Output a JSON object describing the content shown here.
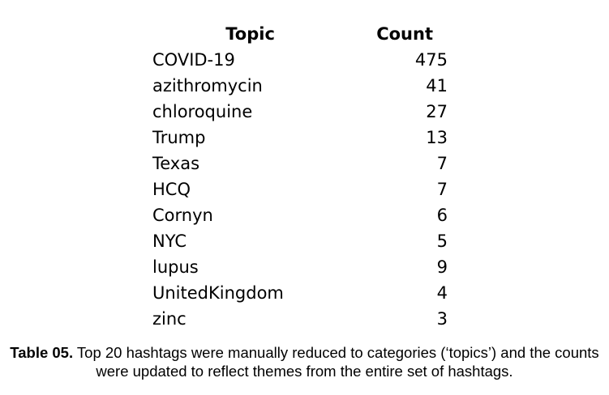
{
  "table": {
    "headers": {
      "topic": "Topic",
      "count": "Count"
    },
    "rows": [
      {
        "topic": "COVID-19",
        "count": "475"
      },
      {
        "topic": "azithromycin",
        "count": "41"
      },
      {
        "topic": "chloroquine",
        "count": "27"
      },
      {
        "topic": "Trump",
        "count": "13"
      },
      {
        "topic": "Texas",
        "count": "7"
      },
      {
        "topic": "HCQ",
        "count": "7"
      },
      {
        "topic": "Cornyn",
        "count": "6"
      },
      {
        "topic": "NYC",
        "count": "5"
      },
      {
        "topic": "lupus",
        "count": "9"
      },
      {
        "topic": "UnitedKingdom",
        "count": "4"
      },
      {
        "topic": "zinc",
        "count": "3"
      }
    ]
  },
  "caption": {
    "label": "Table 05.",
    "text": " Top 20 hashtags were manually reduced to categories (‘topics’) and the counts were updated to reflect themes from the entire set of hashtags."
  }
}
